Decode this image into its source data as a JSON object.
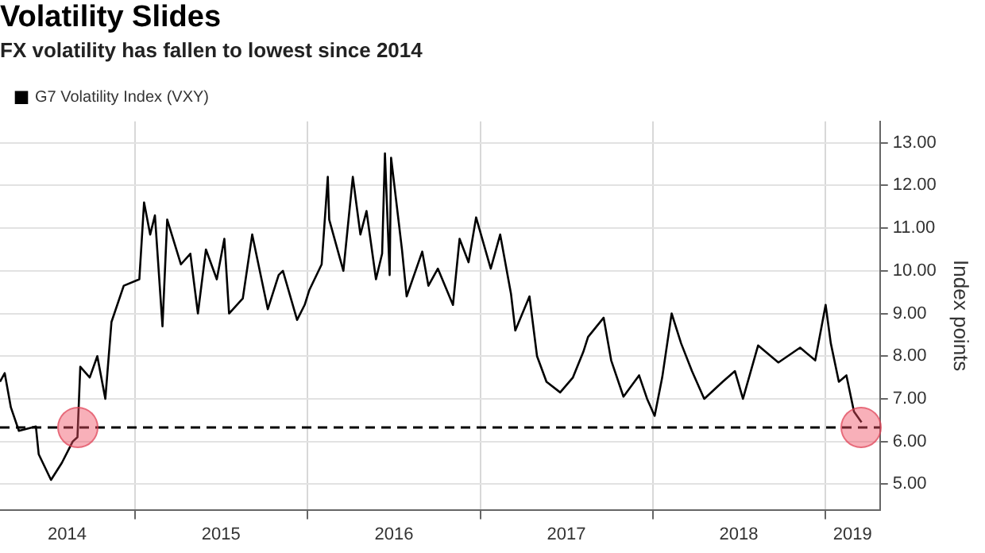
{
  "chart_data": {
    "type": "line",
    "title": "Volatility Slides",
    "subtitle": "FX volatility has fallen to lowest since 2014",
    "ylabel": "Index points",
    "x": [
      "2014-03-21",
      "2014-03-31",
      "2014-04-13",
      "2014-04-30",
      "2014-06-05",
      "2014-06-11",
      "2014-07-07",
      "2014-07-30",
      "2014-08-22",
      "2014-09-01",
      "2014-09-07",
      "2014-09-27",
      "2014-10-13",
      "2014-10-30",
      "2014-11-12",
      "2014-12-08",
      "2015-01-10",
      "2015-01-20",
      "2015-02-02",
      "2015-02-12",
      "2015-02-28",
      "2015-03-10",
      "2015-04-08",
      "2015-04-28",
      "2015-05-14",
      "2015-05-31",
      "2015-06-23",
      "2015-07-09",
      "2015-07-19",
      "2015-08-17",
      "2015-09-06",
      "2015-10-09",
      "2015-11-01",
      "2015-11-10",
      "2015-12-10",
      "2015-12-26",
      "2016-01-05",
      "2016-01-31",
      "2016-02-13",
      "2016-02-16",
      "2016-03-17",
      "2016-04-06",
      "2016-04-22",
      "2016-05-05",
      "2016-05-25",
      "2016-06-07",
      "2016-06-13",
      "2016-06-23",
      "2016-06-26",
      "2016-07-19",
      "2016-07-29",
      "2016-08-31",
      "2016-09-13",
      "2016-10-03",
      "2016-11-04",
      "2016-11-18",
      "2016-12-07",
      "2016-12-23",
      "2017-01-23",
      "2017-02-12",
      "2017-03-07",
      "2017-03-16",
      "2017-04-15",
      "2017-05-01",
      "2017-05-21",
      "2017-06-19",
      "2017-07-16",
      "2017-08-07",
      "2017-08-17",
      "2017-09-19",
      "2017-10-05",
      "2017-10-31",
      "2017-12-03",
      "2017-12-20",
      "2018-01-05",
      "2018-01-21",
      "2018-02-10",
      "2018-03-02",
      "2018-03-25",
      "2018-04-20",
      "2018-05-29",
      "2018-06-24",
      "2018-07-11",
      "2018-08-12",
      "2018-09-24",
      "2018-11-09",
      "2018-12-11",
      "2019-01-02",
      "2019-01-13",
      "2019-01-30",
      "2019-02-15",
      "2019-03-03",
      "2019-03-19"
    ],
    "series": [
      {
        "name": "G7 Volatility Index (VXY)",
        "color": "#000000",
        "values": [
          7.4,
          7.6,
          6.8,
          6.25,
          6.35,
          5.7,
          5.1,
          5.5,
          6.0,
          6.1,
          7.75,
          7.5,
          8.0,
          7.0,
          8.8,
          9.65,
          9.8,
          11.6,
          10.85,
          11.3,
          8.7,
          11.2,
          10.15,
          10.4,
          9.0,
          10.5,
          9.8,
          10.75,
          9.0,
          9.35,
          10.85,
          9.1,
          9.9,
          10.0,
          8.85,
          9.2,
          9.55,
          10.15,
          12.2,
          11.2,
          10.0,
          12.2,
          10.85,
          11.4,
          9.8,
          10.4,
          12.75,
          9.9,
          12.65,
          10.5,
          9.4,
          10.45,
          9.65,
          10.05,
          9.2,
          10.75,
          10.2,
          11.25,
          10.05,
          10.85,
          9.45,
          8.6,
          9.4,
          8.0,
          7.4,
          7.15,
          7.5,
          8.1,
          8.45,
          8.9,
          7.9,
          7.05,
          7.55,
          7.0,
          6.6,
          7.5,
          9.0,
          8.3,
          7.65,
          7.0,
          7.4,
          7.65,
          7.0,
          8.25,
          7.85,
          8.2,
          7.9,
          9.2,
          8.3,
          7.4,
          7.55,
          6.7,
          6.45
        ]
      }
    ],
    "xlim": [
      "2014-03-21",
      "2019-04-27"
    ],
    "xticks": [
      {
        "value": "2014-08-10",
        "label": "2014"
      },
      {
        "value": "2015-01-01",
        "label": null
      },
      {
        "value": "2015-07-02",
        "label": "2015"
      },
      {
        "value": "2016-01-01",
        "label": null
      },
      {
        "value": "2016-07-02",
        "label": "2016"
      },
      {
        "value": "2017-01-01",
        "label": null
      },
      {
        "value": "2017-07-02",
        "label": "2017"
      },
      {
        "value": "2018-01-01",
        "label": null
      },
      {
        "value": "2018-07-02",
        "label": "2018"
      },
      {
        "value": "2019-01-01",
        "label": null
      },
      {
        "value": "2019-02-28",
        "label": "2019"
      }
    ],
    "ylim": [
      4.4,
      13.5
    ],
    "yticks": [
      {
        "value": 5,
        "label": "5.00"
      },
      {
        "value": 6,
        "label": "6.00"
      },
      {
        "value": 7,
        "label": "7.00"
      },
      {
        "value": 8,
        "label": "8.00"
      },
      {
        "value": 9,
        "label": "9.00"
      },
      {
        "value": 10,
        "label": "10.00"
      },
      {
        "value": 11,
        "label": "11.00"
      },
      {
        "value": 12,
        "label": "12.00"
      },
      {
        "value": 13,
        "label": "13.00"
      }
    ],
    "ref_lines": [
      {
        "axis": "y",
        "value": 6.33,
        "color": "#000000",
        "line_style": "dashed"
      }
    ],
    "grid": true,
    "legend": "top left",
    "marker": "none",
    "line_style": "solid"
  }
}
